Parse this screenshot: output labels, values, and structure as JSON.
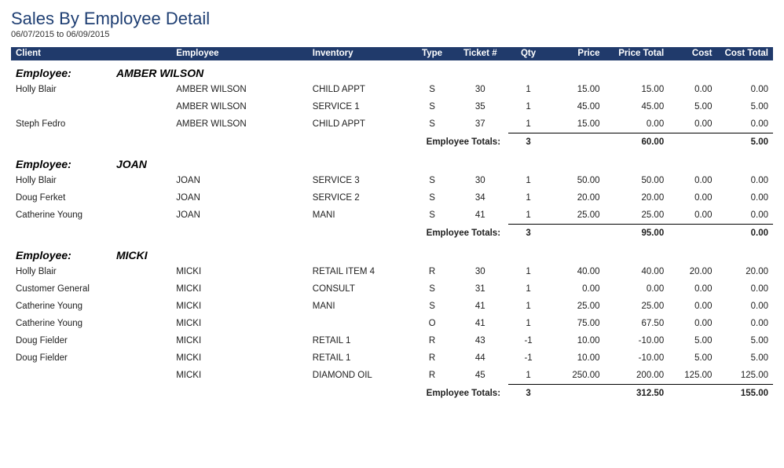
{
  "report": {
    "title": "Sales By Employee Detail",
    "date_range": "06/07/2015 to 06/09/2015"
  },
  "columns": {
    "client": "Client",
    "employee": "Employee",
    "inventory": "Inventory",
    "type": "Type",
    "ticket": "Ticket #",
    "qty": "Qty",
    "price": "Price",
    "price_total": "Price Total",
    "cost": "Cost",
    "cost_total": "Cost Total"
  },
  "labels": {
    "group_prefix": "Employee:",
    "totals": "Employee  Totals:"
  },
  "groups": [
    {
      "name": "AMBER WILSON",
      "rows": [
        {
          "client": "Holly Blair",
          "employee": "AMBER WILSON",
          "inventory": "CHILD APPT",
          "type": "S",
          "ticket": "30",
          "qty": "1",
          "price": "15.00",
          "ptotal": "15.00",
          "cost": "0.00",
          "ctotal": "0.00"
        },
        {
          "client": "",
          "employee": "AMBER WILSON",
          "inventory": "SERVICE 1",
          "type": "S",
          "ticket": "35",
          "qty": "1",
          "price": "45.00",
          "ptotal": "45.00",
          "cost": "5.00",
          "ctotal": "5.00"
        },
        {
          "client": "Steph Fedro",
          "employee": "AMBER WILSON",
          "inventory": "CHILD APPT",
          "type": "S",
          "ticket": "37",
          "qty": "1",
          "price": "15.00",
          "ptotal": "0.00",
          "cost": "0.00",
          "ctotal": "0.00"
        }
      ],
      "totals": {
        "qty": "3",
        "ptotal": "60.00",
        "ctotal": "5.00"
      }
    },
    {
      "name": "JOAN",
      "rows": [
        {
          "client": "Holly Blair",
          "employee": "JOAN",
          "inventory": "SERVICE 3",
          "type": "S",
          "ticket": "30",
          "qty": "1",
          "price": "50.00",
          "ptotal": "50.00",
          "cost": "0.00",
          "ctotal": "0.00"
        },
        {
          "client": "Doug Ferket",
          "employee": "JOAN",
          "inventory": "SERVICE 2",
          "type": "S",
          "ticket": "34",
          "qty": "1",
          "price": "20.00",
          "ptotal": "20.00",
          "cost": "0.00",
          "ctotal": "0.00"
        },
        {
          "client": "Catherine Young",
          "employee": "JOAN",
          "inventory": "MANI",
          "type": "S",
          "ticket": "41",
          "qty": "1",
          "price": "25.00",
          "ptotal": "25.00",
          "cost": "0.00",
          "ctotal": "0.00"
        }
      ],
      "totals": {
        "qty": "3",
        "ptotal": "95.00",
        "ctotal": "0.00"
      }
    },
    {
      "name": "MICKI",
      "rows": [
        {
          "client": "Holly Blair",
          "employee": "MICKI",
          "inventory": "RETAIL ITEM 4",
          "type": "R",
          "ticket": "30",
          "qty": "1",
          "price": "40.00",
          "ptotal": "40.00",
          "cost": "20.00",
          "ctotal": "20.00"
        },
        {
          "client": "Customer General",
          "employee": "MICKI",
          "inventory": "CONSULT",
          "type": "S",
          "ticket": "31",
          "qty": "1",
          "price": "0.00",
          "ptotal": "0.00",
          "cost": "0.00",
          "ctotal": "0.00"
        },
        {
          "client": "Catherine Young",
          "employee": "MICKI",
          "inventory": "MANI",
          "type": "S",
          "ticket": "41",
          "qty": "1",
          "price": "25.00",
          "ptotal": "25.00",
          "cost": "0.00",
          "ctotal": "0.00"
        },
        {
          "client": "Catherine Young",
          "employee": "MICKI",
          "inventory": "",
          "type": "O",
          "ticket": "41",
          "qty": "1",
          "price": "75.00",
          "ptotal": "67.50",
          "cost": "0.00",
          "ctotal": "0.00"
        },
        {
          "client": "Doug Fielder",
          "employee": "MICKI",
          "inventory": "RETAIL 1",
          "type": "R",
          "ticket": "43",
          "qty": "-1",
          "price": "10.00",
          "ptotal": "-10.00",
          "cost": "5.00",
          "ctotal": "5.00"
        },
        {
          "client": "Doug Fielder",
          "employee": "MICKI",
          "inventory": "RETAIL 1",
          "type": "R",
          "ticket": "44",
          "qty": "-1",
          "price": "10.00",
          "ptotal": "-10.00",
          "cost": "5.00",
          "ctotal": "5.00"
        },
        {
          "client": "",
          "employee": "MICKI",
          "inventory": "DIAMOND OIL",
          "type": "R",
          "ticket": "45",
          "qty": "1",
          "price": "250.00",
          "ptotal": "200.00",
          "cost": "125.00",
          "ctotal": "125.00"
        }
      ],
      "totals": {
        "qty": "3",
        "ptotal": "312.50",
        "ctotal": "155.00"
      }
    }
  ]
}
